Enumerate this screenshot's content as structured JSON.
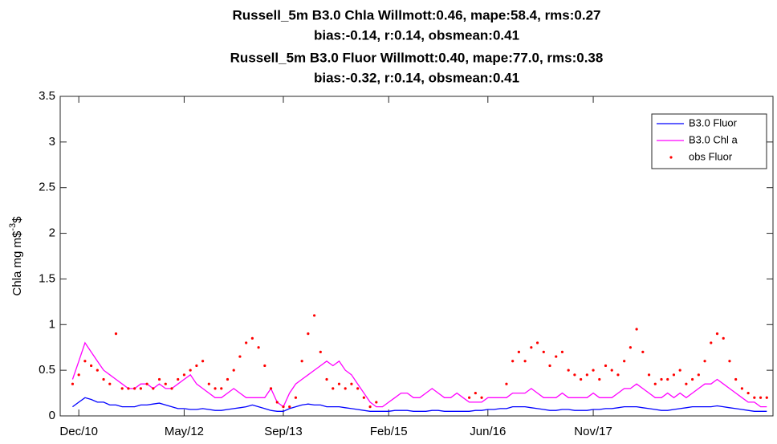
{
  "chart_data": {
    "type": "line",
    "title": [
      "Russell_5m  B3.0 Chla Willmott:0.46, mape:58.4, rms:0.27",
      "bias:-0.14, r:0.14, obsmean:0.41",
      "Russell_5m B3.0 Fluor Willmott:0.40, mape:77.0, rms:0.38",
      "bias:-0.32, r:0.14, obsmean:0.41"
    ],
    "ylabel": [
      "Chla mg m$",
      "-3",
      "$"
    ],
    "x": [
      "2010-11",
      "2010-12",
      "2011-01",
      "2011-02",
      "2011-03",
      "2011-04",
      "2011-05",
      "2011-06",
      "2011-07",
      "2011-08",
      "2011-09",
      "2011-10",
      "2011-11",
      "2011-12",
      "2012-01",
      "2012-02",
      "2012-03",
      "2012-04",
      "2012-05",
      "2012-06",
      "2012-07",
      "2012-08",
      "2012-09",
      "2012-10",
      "2012-11",
      "2012-12",
      "2013-01",
      "2013-02",
      "2013-03",
      "2013-04",
      "2013-05",
      "2013-06",
      "2013-07",
      "2013-08",
      "2013-09",
      "2013-10",
      "2013-11",
      "2013-12",
      "2014-01",
      "2014-02",
      "2014-03",
      "2014-04",
      "2014-05",
      "2014-06",
      "2014-07",
      "2014-08",
      "2014-09",
      "2014-10",
      "2014-11",
      "2014-12",
      "2015-01",
      "2015-02",
      "2015-03",
      "2015-04",
      "2015-05",
      "2015-06",
      "2015-07",
      "2015-08",
      "2015-09",
      "2015-10",
      "2015-11",
      "2015-12",
      "2016-01",
      "2016-02",
      "2016-03",
      "2016-04",
      "2016-05",
      "2016-06",
      "2016-07",
      "2016-08",
      "2016-09",
      "2016-10",
      "2016-11",
      "2016-12",
      "2017-01",
      "2017-02",
      "2017-03",
      "2017-04",
      "2017-05",
      "2017-06",
      "2017-07",
      "2017-08",
      "2017-09",
      "2017-10",
      "2017-11",
      "2017-12",
      "2018-01",
      "2018-02",
      "2018-03",
      "2018-04",
      "2018-05",
      "2018-06",
      "2018-07",
      "2018-08",
      "2018-09",
      "2018-10",
      "2018-11",
      "2018-12",
      "2019-01",
      "2019-02",
      "2019-03",
      "2019-04",
      "2019-05",
      "2019-06",
      "2019-07",
      "2019-08",
      "2019-09",
      "2019-10",
      "2019-11",
      "2019-12",
      "2020-01",
      "2020-02",
      "2020-03"
    ],
    "series": [
      {
        "name": "B3.0 Fluor",
        "color": "#0000ff",
        "style": "line",
        "values": [
          0.1,
          0.15,
          0.2,
          0.18,
          0.15,
          0.15,
          0.12,
          0.12,
          0.1,
          0.1,
          0.1,
          0.12,
          0.12,
          0.13,
          0.14,
          0.12,
          0.1,
          0.08,
          0.08,
          0.07,
          0.07,
          0.08,
          0.07,
          0.06,
          0.06,
          0.07,
          0.08,
          0.09,
          0.1,
          0.12,
          0.1,
          0.08,
          0.06,
          0.05,
          0.05,
          0.08,
          0.1,
          0.12,
          0.13,
          0.12,
          0.12,
          0.1,
          0.1,
          0.1,
          0.09,
          0.08,
          0.07,
          0.06,
          0.05,
          0.05,
          0.05,
          0.05,
          0.06,
          0.06,
          0.06,
          0.05,
          0.05,
          0.05,
          0.06,
          0.06,
          0.05,
          0.05,
          0.05,
          0.05,
          0.05,
          0.06,
          0.06,
          0.07,
          0.07,
          0.08,
          0.08,
          0.1,
          0.1,
          0.1,
          0.09,
          0.08,
          0.07,
          0.06,
          0.06,
          0.07,
          0.07,
          0.06,
          0.06,
          0.06,
          0.07,
          0.07,
          0.08,
          0.08,
          0.09,
          0.1,
          0.1,
          0.1,
          0.09,
          0.08,
          0.07,
          0.06,
          0.06,
          0.07,
          0.08,
          0.09,
          0.1,
          0.1,
          0.1,
          0.1,
          0.11,
          0.1,
          0.09,
          0.08,
          0.07,
          0.06,
          0.05,
          0.05,
          0.05
        ]
      },
      {
        "name": "B3.0 Chl a",
        "color": "#ff00ff",
        "style": "line",
        "values": [
          0.4,
          0.6,
          0.8,
          0.7,
          0.6,
          0.5,
          0.45,
          0.4,
          0.35,
          0.3,
          0.3,
          0.35,
          0.35,
          0.3,
          0.35,
          0.3,
          0.3,
          0.35,
          0.4,
          0.45,
          0.35,
          0.3,
          0.25,
          0.2,
          0.2,
          0.25,
          0.3,
          0.25,
          0.2,
          0.2,
          0.2,
          0.2,
          0.3,
          0.15,
          0.1,
          0.25,
          0.35,
          0.4,
          0.45,
          0.5,
          0.55,
          0.6,
          0.55,
          0.6,
          0.5,
          0.45,
          0.35,
          0.25,
          0.15,
          0.1,
          0.1,
          0.15,
          0.2,
          0.25,
          0.25,
          0.2,
          0.2,
          0.25,
          0.3,
          0.25,
          0.2,
          0.2,
          0.25,
          0.2,
          0.15,
          0.15,
          0.15,
          0.2,
          0.2,
          0.2,
          0.2,
          0.25,
          0.25,
          0.25,
          0.3,
          0.25,
          0.2,
          0.2,
          0.2,
          0.25,
          0.2,
          0.2,
          0.2,
          0.2,
          0.25,
          0.2,
          0.2,
          0.2,
          0.25,
          0.3,
          0.3,
          0.35,
          0.3,
          0.25,
          0.2,
          0.2,
          0.25,
          0.2,
          0.25,
          0.2,
          0.25,
          0.3,
          0.35,
          0.35,
          0.4,
          0.35,
          0.3,
          0.25,
          0.2,
          0.15,
          0.15,
          0.1,
          0.1
        ]
      },
      {
        "name": "obs Fluor",
        "color": "#ff0000",
        "style": "dots",
        "values": [
          0.35,
          0.45,
          0.6,
          0.55,
          0.5,
          0.4,
          0.35,
          0.9,
          0.3,
          0.3,
          0.3,
          0.3,
          0.35,
          0.3,
          0.4,
          0.35,
          0.3,
          0.4,
          0.45,
          0.5,
          0.55,
          0.6,
          0.35,
          0.3,
          0.3,
          0.4,
          0.5,
          0.65,
          0.8,
          0.85,
          0.75,
          0.55,
          0.3,
          0.15,
          0.1,
          0.1,
          0.2,
          0.6,
          0.9,
          1.1,
          0.7,
          0.4,
          0.3,
          0.35,
          0.3,
          0.35,
          0.3,
          0.2,
          0.1,
          0.15,
          null,
          null,
          null,
          null,
          null,
          null,
          null,
          null,
          null,
          null,
          null,
          null,
          null,
          null,
          0.2,
          0.25,
          0.2,
          null,
          null,
          null,
          0.35,
          0.6,
          0.7,
          0.6,
          0.75,
          0.8,
          0.7,
          0.55,
          0.65,
          0.7,
          0.5,
          0.45,
          0.4,
          0.45,
          0.5,
          0.4,
          0.55,
          0.5,
          0.45,
          0.6,
          0.75,
          0.95,
          0.7,
          0.45,
          0.35,
          0.4,
          0.4,
          0.45,
          0.5,
          0.35,
          0.4,
          0.45,
          0.6,
          0.8,
          0.9,
          0.85,
          0.6,
          0.4,
          0.3,
          0.25,
          0.2,
          0.2,
          0.2
        ]
      }
    ],
    "xlim": [
      "2010-09",
      "2020-04"
    ],
    "xticks": [
      {
        "value": "2010-12",
        "label": "Dec/10"
      },
      {
        "value": "2012-05",
        "label": "May/12"
      },
      {
        "value": "2013-09",
        "label": "Sep/13"
      },
      {
        "value": "2015-02",
        "label": "Feb/15"
      },
      {
        "value": "2016-06",
        "label": "Jun/16"
      },
      {
        "value": "2017-11",
        "label": "Nov/17"
      }
    ],
    "ylim": [
      0,
      3.5
    ],
    "yticks": [
      0,
      0.5,
      1,
      1.5,
      2,
      2.5,
      3,
      3.5
    ],
    "legend": "northeast"
  }
}
